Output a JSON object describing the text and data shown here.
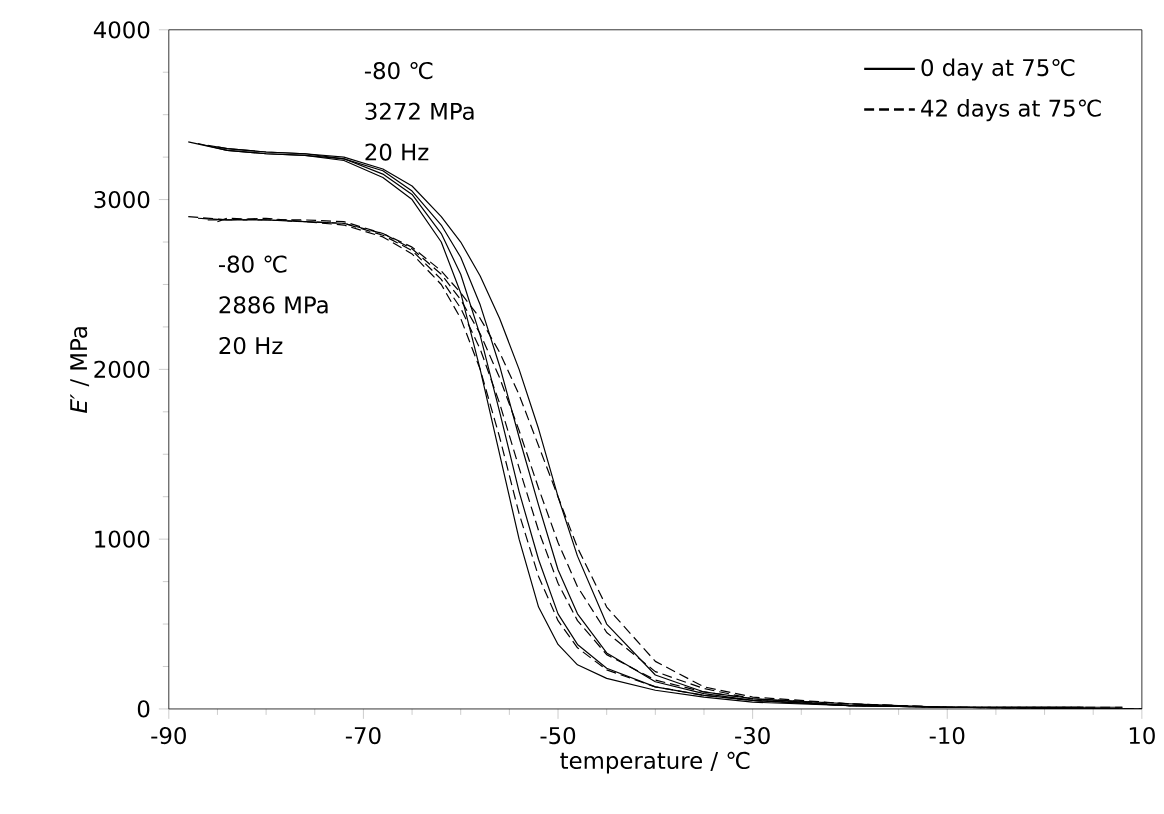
{
  "chart_data": {
    "type": "line",
    "xlabel": "temperature / ℃",
    "ylabel": "*E′* / MPa",
    "xlim": [
      -90,
      10
    ],
    "xticks": [
      -90,
      -70,
      -50,
      -30,
      -10,
      10
    ],
    "ylim": [
      0,
      4000
    ],
    "yticks": [
      0,
      1000,
      2000,
      3000,
      4000
    ],
    "legend": "top right",
    "grid": false,
    "annotations": [
      "-80 ℃",
      "3272 MPa",
      "20 Hz",
      "-80 ℃",
      "2886 MPa",
      "20 Hz"
    ],
    "x": [
      -88,
      -84,
      -80,
      -76,
      -72,
      -68,
      -65,
      -62,
      -60,
      -58,
      -56,
      -54,
      -52,
      -50,
      -48,
      -45,
      -40,
      -35,
      -30,
      -20,
      -10,
      10
    ],
    "series": [
      {
        "name": "0 day at 75℃",
        "color": "#000000",
        "line_style": "solid",
        "values": [
          3340,
          3290,
          3270,
          3260,
          3230,
          3130,
          3000,
          2750,
          2450,
          2000,
          1500,
          1000,
          600,
          380,
          260,
          180,
          110,
          70,
          40,
          20,
          10,
          0
        ]
      },
      {
        "color": "#000000",
        "line_style": "solid",
        "x": [
          -87,
          -84,
          -80,
          -76,
          -72,
          -68,
          -65,
          -62,
          -60,
          -58,
          -56,
          -54,
          -52,
          -50,
          -48,
          -45,
          -40,
          -35,
          -30,
          -20,
          -10,
          8
        ],
        "values": [
          3330,
          3290,
          3270,
          3260,
          3240,
          3150,
          3030,
          2800,
          2560,
          2200,
          1750,
          1280,
          880,
          560,
          380,
          240,
          130,
          80,
          50,
          20,
          10,
          10
        ]
      },
      {
        "color": "#000000",
        "line_style": "solid",
        "x": [
          -86,
          -84,
          -80,
          -76,
          -72,
          -68,
          -65,
          -62,
          -60,
          -58,
          -56,
          -54,
          -52,
          -50,
          -48,
          -45,
          -40,
          -35,
          -30,
          -20,
          -10,
          6
        ],
        "values": [
          3320,
          3300,
          3280,
          3270,
          3240,
          3170,
          3050,
          2850,
          2660,
          2380,
          2020,
          1600,
          1200,
          820,
          560,
          330,
          160,
          90,
          50,
          20,
          10,
          0
        ]
      },
      {
        "color": "#000000",
        "line_style": "solid",
        "x": [
          -85,
          -84,
          -80,
          -76,
          -72,
          -68,
          -65,
          -62,
          -60,
          -58,
          -56,
          -54,
          -52,
          -50,
          -48,
          -45,
          -40,
          -35,
          -30,
          -20,
          -10,
          4
        ],
        "values": [
          3310,
          3300,
          3280,
          3270,
          3250,
          3180,
          3080,
          2900,
          2750,
          2550,
          2300,
          2000,
          1650,
          1250,
          900,
          500,
          200,
          100,
          60,
          30,
          10,
          10
        ]
      },
      {
        "name": "42 days at 75℃",
        "color": "#000000",
        "line_style": "dashed",
        "values": [
          2900,
          2880,
          2890,
          2870,
          2850,
          2780,
          2680,
          2500,
          2300,
          2000,
          1600,
          1150,
          780,
          520,
          360,
          230,
          130,
          80,
          50,
          20,
          10,
          0
        ]
      },
      {
        "color": "#000000",
        "line_style": "dashed",
        "x": [
          -87,
          -84,
          -80,
          -76,
          -72,
          -68,
          -65,
          -62,
          -60,
          -58,
          -56,
          -54,
          -52,
          -50,
          -48,
          -45,
          -40,
          -35,
          -30,
          -20,
          -10,
          8
        ],
        "values": [
          2890,
          2880,
          2880,
          2870,
          2860,
          2790,
          2700,
          2530,
          2360,
          2120,
          1800,
          1420,
          1050,
          740,
          520,
          320,
          170,
          100,
          60,
          20,
          10,
          10
        ]
      },
      {
        "color": "#000000",
        "line_style": "dashed",
        "x": [
          -86,
          -84,
          -80,
          -76,
          -72,
          -68,
          -65,
          -62,
          -60,
          -58,
          -56,
          -54,
          -52,
          -50,
          -48,
          -45,
          -40,
          -35,
          -30,
          -20,
          -10,
          6
        ],
        "values": [
          2880,
          2880,
          2880,
          2870,
          2860,
          2800,
          2710,
          2560,
          2410,
          2210,
          1950,
          1640,
          1300,
          980,
          720,
          450,
          220,
          120,
          60,
          30,
          10,
          0
        ]
      },
      {
        "color": "#000000",
        "line_style": "dashed",
        "x": [
          -85,
          -84,
          -80,
          -76,
          -72,
          -68,
          -65,
          -62,
          -60,
          -58,
          -56,
          -54,
          -52,
          -50,
          -48,
          -45,
          -40,
          -35,
          -30,
          -20,
          -10,
          4
        ],
        "values": [
          2870,
          2890,
          2880,
          2880,
          2870,
          2800,
          2720,
          2580,
          2450,
          2300,
          2100,
          1850,
          1550,
          1250,
          950,
          600,
          280,
          130,
          70,
          30,
          10,
          10
        ]
      }
    ]
  }
}
